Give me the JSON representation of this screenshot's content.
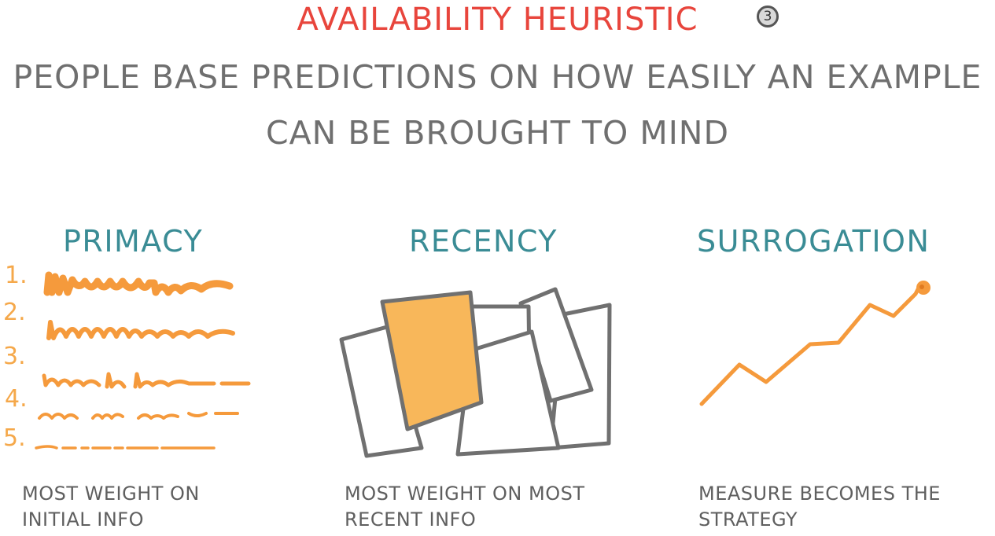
{
  "header": {
    "title": "AVAILABILITY HEURISTIC",
    "badge": "3",
    "subtitle_line1": "PEOPLE BASE PREDICTIONS ON HOW EASILY AN EXAMPLE",
    "subtitle_line2": "CAN BE BROUGHT TO MIND"
  },
  "columns": {
    "primacy": {
      "heading": "PRIMACY",
      "numbers": [
        "1.",
        "2.",
        "3.",
        "4.",
        "5."
      ],
      "caption_line1": "MOST WEIGHT ON",
      "caption_line2": "INITIAL INFO"
    },
    "recency": {
      "heading": "RECENCY",
      "caption_line1": "MOST WEIGHT ON MOST",
      "caption_line2": "RECENT INFO"
    },
    "surrogation": {
      "heading": "SURROGATION",
      "caption_line1": "MEASURE BECOMES THE",
      "caption_line2": "STRATEGY"
    }
  },
  "colors": {
    "title": "#e8453c",
    "heading": "#3a8c95",
    "accent_orange": "#f59a3c",
    "paper_highlight": "#f8b75a",
    "text_gray": "#6f6f6f"
  }
}
